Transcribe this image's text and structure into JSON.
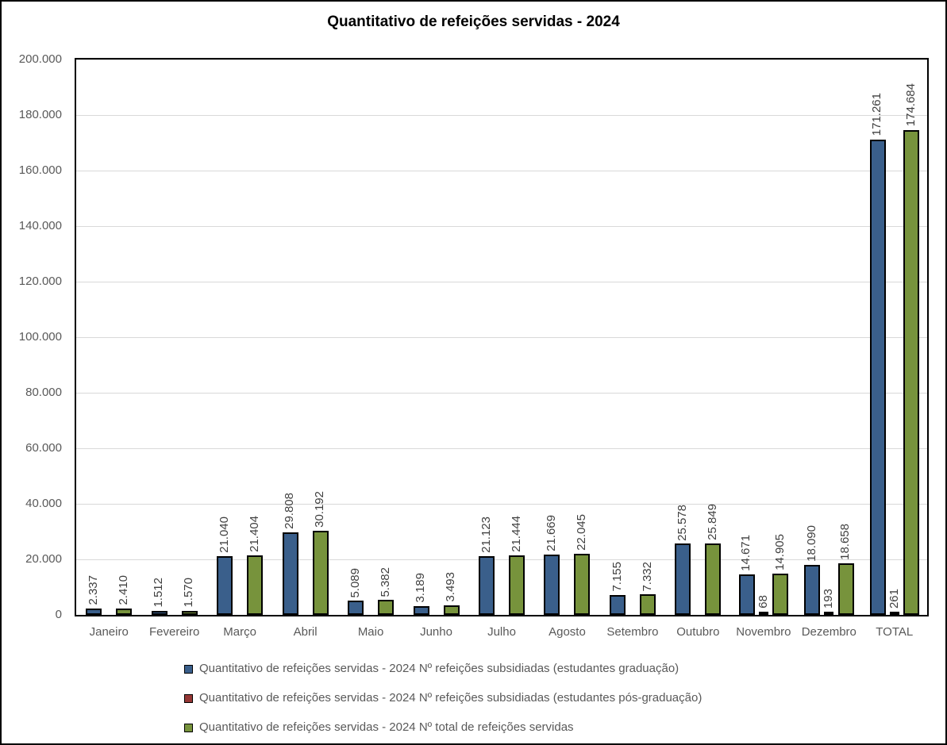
{
  "chart_data": {
    "type": "bar",
    "title": "Quantitativo de refeições servidas - 2024",
    "categories": [
      "Janeiro",
      "Fevereiro",
      "Março",
      "Abril",
      "Maio",
      "Junho",
      "Julho",
      "Agosto",
      "Setembro",
      "Outubro",
      "Novembro",
      "Dezembro",
      "TOTAL"
    ],
    "series": [
      {
        "key": "graduacao",
        "name": "Quantitativo de refeições servidas - 2024 Nº refeições subsidiadas (estudantes graduação)",
        "color": "#3A5F8B",
        "values": [
          2337,
          1512,
          21040,
          29808,
          5089,
          3189,
          21123,
          21669,
          7155,
          25578,
          14671,
          18090,
          171261
        ],
        "labels": [
          "2.337",
          "1.512",
          "21.040",
          "29.808",
          "5.089",
          "3.189",
          "21.123",
          "21.669",
          "7.155",
          "25.578",
          "14.671",
          "18.090",
          "171.261"
        ]
      },
      {
        "key": "pos-graduacao",
        "name": "Quantitativo de refeições servidas - 2024 Nº refeições subsidiadas (estudantes pós-graduação)",
        "color": "#953735",
        "values": [
          0,
          0,
          0,
          0,
          0,
          0,
          0,
          0,
          0,
          0,
          68,
          193,
          261
        ],
        "labels": [
          "",
          "",
          "",
          "",
          "",
          "",
          "",
          "",
          "",
          "",
          "68",
          "193",
          "261"
        ]
      },
      {
        "key": "total",
        "name": "Quantitativo de refeições servidas - 2024 Nº total de refeições servidas",
        "color": "#77933C",
        "values": [
          2410,
          1570,
          21404,
          30192,
          5382,
          3493,
          21444,
          22045,
          7332,
          25849,
          14905,
          18658,
          174684
        ],
        "labels": [
          "2.410",
          "1.570",
          "21.404",
          "30.192",
          "5.382",
          "3.493",
          "21.444",
          "22.045",
          "7.332",
          "25.849",
          "14.905",
          "18.658",
          "174.684"
        ]
      }
    ],
    "y_axis": {
      "min": 0,
      "max": 200000,
      "step": 20000,
      "tick_labels": [
        "0",
        "20.000",
        "40.000",
        "60.000",
        "80.000",
        "100.000",
        "120.000",
        "140.000",
        "160.000",
        "180.000",
        "200.000"
      ]
    },
    "legend_position": "bottom",
    "grid": true
  },
  "colors": {
    "grid": "#D9D9D9",
    "axis_text": "#595959",
    "data_label_text": "#3F3F3F",
    "border": "#000000"
  }
}
